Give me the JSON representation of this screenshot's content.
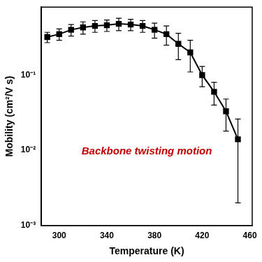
{
  "chart_data": {
    "type": "line",
    "x_label": "Temperature (K)",
    "y_label": "Mobility (cm²/V s)",
    "annotation": "Backbone twisting motion",
    "x": [
      290,
      300,
      310,
      320,
      330,
      340,
      350,
      360,
      370,
      380,
      390,
      400,
      410,
      420,
      430,
      440,
      450
    ],
    "series": [
      {
        "name": "Mobility",
        "color": "#000000",
        "marker": "square",
        "line_style": "solid",
        "values": [
          0.32,
          0.35,
          0.4,
          0.43,
          0.45,
          0.46,
          0.48,
          0.47,
          0.45,
          0.4,
          0.35,
          0.26,
          0.2,
          0.1,
          0.06,
          0.033,
          0.014
        ],
        "errors": [
          0.05,
          0.06,
          0.07,
          0.08,
          0.08,
          0.08,
          0.09,
          0.08,
          0.08,
          0.09,
          0.1,
          0.1,
          0.09,
          0.03,
          0.02,
          0.015,
          0.012
        ]
      }
    ],
    "xlim": [
      285,
      462
    ],
    "xticks": [
      300,
      340,
      380,
      420,
      460
    ],
    "ylim": [
      0.001,
      0.8
    ],
    "yticks": [
      {
        "value": 0.001,
        "label": "10⁻³"
      },
      {
        "value": 0.01,
        "label": "10⁻²"
      },
      {
        "value": 0.1,
        "label": "10⁻¹"
      }
    ],
    "log": "y",
    "grid": false
  }
}
